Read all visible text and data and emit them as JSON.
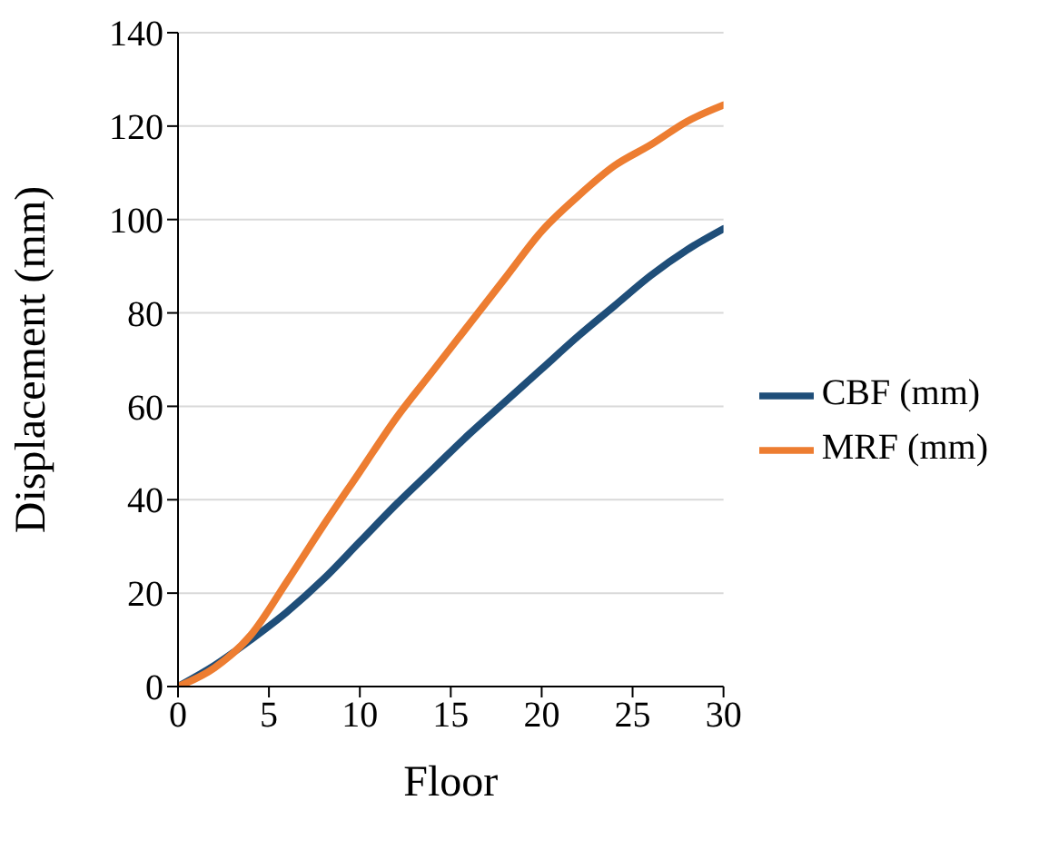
{
  "chart_data": {
    "type": "line",
    "xlabel": "Floor",
    "ylabel": "Displacement (mm)",
    "x": [
      0,
      2,
      4,
      6,
      8,
      10,
      12,
      14,
      16,
      18,
      20,
      22,
      24,
      26,
      28,
      30
    ],
    "series": [
      {
        "name": "CBF (mm)",
        "color": "#1f4e79",
        "values": [
          0,
          4.5,
          10,
          16,
          23,
          31,
          39,
          46.5,
          54,
          61,
          68,
          75,
          81.5,
          88,
          93.5,
          98
        ]
      },
      {
        "name": "MRF (mm)",
        "color": "#ed7d31",
        "values": [
          0,
          4,
          11,
          22.5,
          34.5,
          46,
          57.5,
          67.5,
          77.5,
          87.5,
          97.5,
          105,
          111.5,
          116,
          121,
          124.5
        ]
      }
    ],
    "xlim": [
      0,
      30
    ],
    "xticks": [
      0,
      5,
      10,
      15,
      20,
      25,
      30
    ],
    "ylim": [
      0,
      140
    ],
    "yticks": [
      0,
      20,
      40,
      60,
      80,
      100,
      120,
      140
    ],
    "grid": "y",
    "legend": "right",
    "marker": "none",
    "line_style": "solid"
  }
}
